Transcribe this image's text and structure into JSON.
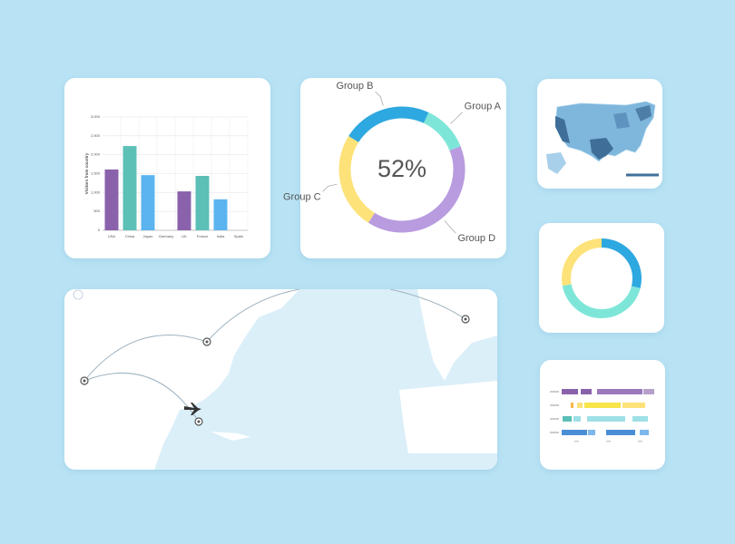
{
  "chart_data": [
    {
      "type": "bar",
      "y_label": "Visitors from country",
      "categories": [
        "USA",
        "China",
        "Japan",
        "Germany",
        "UK",
        "France",
        "India",
        "Spain"
      ],
      "values": [
        1610,
        2230,
        1460,
        null,
        1030,
        1440,
        820,
        null
      ],
      "colors": [
        "#8a62ac",
        "#5cc0b7",
        "#5bb4ef",
        "#8a62ac",
        "#8a62ac",
        "#5cc0b7",
        "#5bb4ef",
        "#5bb4ef"
      ],
      "ylim": [
        0,
        3000
      ],
      "yticks": [
        0,
        500,
        {
          "value": 1000,
          "label": "1,000"
        },
        {
          "value": 1500,
          "label": "1,500"
        },
        {
          "value": 2000,
          "label": "2,000"
        },
        {
          "value": 2500,
          "label": "2,500"
        },
        {
          "value": 3000,
          "label": "3,000"
        }
      ],
      "grid": true
    },
    {
      "type": "pie",
      "center_label": "52%",
      "categories": [
        "Group A",
        "Group D",
        "Group C",
        "Group B"
      ],
      "values": [
        12,
        40,
        25,
        23
      ],
      "colors": [
        "#7ee6d8",
        "#b99be0",
        "#fde27a",
        "#2ea8e0"
      ]
    },
    {
      "type": "pie",
      "values": [
        29,
        43,
        28
      ],
      "colors": [
        "#2ea8e0",
        "#7ee6d8",
        "#fde27a"
      ]
    }
  ]
}
